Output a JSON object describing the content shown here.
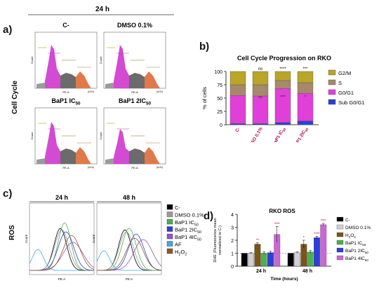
{
  "panel_labels": {
    "a": "a)",
    "b": "b)",
    "c": "c)",
    "d": "d)"
  },
  "panel_a": {
    "time_label": "24 h",
    "row_label": "Cell Cycle",
    "titles": [
      "C-",
      "DMSO 0.1%",
      "BaP1 IC50",
      "BaP1 2IC50"
    ],
    "title_main": [
      "C-",
      "DMSO 0.1%",
      "BaP1 IC",
      "BaP1 2IC"
    ],
    "title_sub": [
      "",
      "",
      "50",
      "50"
    ],
    "xlabel": "PE-A",
    "ylabel": "Count",
    "x_exp": "(x10³)"
  },
  "chart_data": [
    {
      "type": "bar",
      "stacked": true,
      "title": "Cell Cycle Progression on RKO",
      "ylabel": "% of cells",
      "ylim": [
        0,
        100
      ],
      "yticks": [
        0,
        25,
        50,
        75,
        100
      ],
      "categories": [
        "C-",
        "DMSO 0.1%",
        "BaP1 IC50",
        "BaP1 2IC50"
      ],
      "cat_main": [
        "C-",
        "DMSO 0.1%",
        "BaP1 IC",
        "BaP1 2IC"
      ],
      "cat_sub": [
        "",
        "",
        "50",
        "50"
      ],
      "legend_position": "right",
      "series": [
        {
          "name": "Sub G0/G1",
          "color": "#2b3fd9",
          "values": [
            2,
            2,
            4,
            7
          ]
        },
        {
          "name": "G0/G1",
          "color": "#e040d8",
          "values": [
            53,
            52,
            64,
            52
          ]
        },
        {
          "name": "S",
          "color": "#a5896a",
          "values": [
            20,
            21,
            15,
            20
          ]
        },
        {
          "name": "G2/M",
          "color": "#b9a528",
          "values": [
            25,
            25,
            17,
            21
          ]
        }
      ],
      "significance": [
        "",
        "ns",
        "****",
        "***"
      ],
      "significance_lower": [
        "",
        "ns",
        "****",
        "*"
      ]
    },
    {
      "type": "bar",
      "title": "RKO ROS",
      "xlabel": "Time (hours)",
      "ylabel": "DHE (Fluorescence mean normalized to C-)",
      "ylabel_lines": [
        "DHE (Fluorescence mean",
        "normalized to C-)"
      ],
      "ylim": [
        0,
        4
      ],
      "yticks": [
        0,
        1,
        2,
        3,
        4
      ],
      "categories": [
        "24 h",
        "48 h"
      ],
      "reference_line": 1,
      "legend_position": "right",
      "series": [
        {
          "name": "C-",
          "color": "#000000",
          "values": [
            1.0,
            1.0
          ],
          "err": [
            0,
            0
          ]
        },
        {
          "name": "DMSO 0.1%",
          "color": "#cfcfd6",
          "values": [
            1.0,
            1.05
          ],
          "err": [
            0.05,
            0.05
          ]
        },
        {
          "name": "H2O2",
          "color": "#7a5418",
          "values": [
            1.7,
            1.7
          ],
          "err": [
            0.1,
            0.3
          ]
        },
        {
          "name": "BaP1 IC50",
          "color": "#4caf50",
          "values": [
            1.0,
            1.1
          ],
          "err": [
            0.1,
            0.1
          ]
        },
        {
          "name": "BaP1 2IC50",
          "color": "#2b3fd9",
          "values": [
            1.05,
            2.2
          ],
          "err": [
            0.1,
            0.1
          ]
        },
        {
          "name": "BaP1 4IC50",
          "color": "#cc66d6",
          "values": [
            2.45,
            3.2
          ],
          "err": [
            0.6,
            0.1
          ]
        }
      ],
      "legend_labels": [
        {
          "main": "C-",
          "sub": ""
        },
        {
          "main": "DMSO 0.1%",
          "sub": ""
        },
        {
          "main": "H",
          "sub": "2",
          "tail": "O",
          "sub2": "2"
        },
        {
          "main": "BaP1 IC",
          "sub": "50"
        },
        {
          "main": "BaP1 2IC",
          "sub": "50"
        },
        {
          "main": "BaP1 4IC",
          "sub": "50"
        }
      ],
      "significance": [
        [
          "",
          "",
          "**",
          "",
          "",
          "****"
        ],
        [
          "",
          "",
          "*",
          "",
          "****",
          "****"
        ]
      ]
    }
  ],
  "panel_c": {
    "row_label": "ROS",
    "time_labels": [
      "24 h",
      "48 h"
    ],
    "xlabel": "PE-A",
    "ylabel": "Count",
    "legend": [
      {
        "main": "C-",
        "sub": "",
        "color": "#000000"
      },
      {
        "main": "DMSO 0.1%",
        "sub": "",
        "color": "#9a9a9a"
      },
      {
        "main": "BaP1 IC",
        "sub": "50",
        "color": "#4caf50"
      },
      {
        "main": "BaP1 2IC",
        "sub": "50",
        "color": "#2b3fd9"
      },
      {
        "main": "BaP1 4IC",
        "sub": "50",
        "color": "#9b4fc9"
      },
      {
        "main": "AF",
        "sub": "",
        "color": "#3da9e8"
      },
      {
        "main": "H",
        "sub": "2",
        "tail": "O",
        "sub2": "2",
        "color": "#8a5a2b"
      }
    ]
  }
}
